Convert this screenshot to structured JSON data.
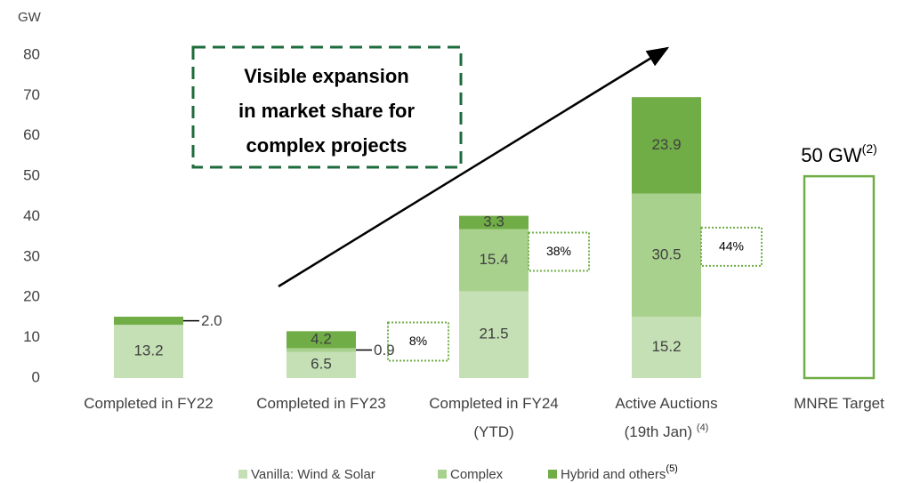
{
  "chart_data": {
    "type": "stacked_bar",
    "y_axis_label": "GW",
    "categories": [
      [
        "Completed in FY22"
      ],
      [
        "Completed in FY23"
      ],
      [
        "Completed in FY24",
        "(YTD)"
      ],
      [
        "Active Auctions",
        "(19th Jan)"
      ],
      [
        "MNRE Target"
      ]
    ],
    "category_notes": [
      null,
      null,
      null,
      "(4)",
      null
    ],
    "series": [
      {
        "name": "Vanilla: Wind & Solar",
        "color": "#c5e0b4",
        "values": [
          13.2,
          6.5,
          21.5,
          15.2,
          null
        ],
        "value_labels": [
          "13.2",
          "6.5",
          "21.5",
          "15.2",
          null
        ]
      },
      {
        "name": "Complex",
        "color": "#a9d18e",
        "values": [
          null,
          0.9,
          15.4,
          30.5,
          null
        ],
        "value_labels": [
          null,
          "0.9",
          "15.4",
          "30.5",
          null
        ]
      },
      {
        "name": "Hybrid and others",
        "note": "(5)",
        "color": "#70ad47",
        "values": [
          2.0,
          4.2,
          3.3,
          23.9,
          null
        ],
        "value_labels": [
          "2.0",
          "4.2",
          "3.3",
          "23.9",
          null
        ]
      }
    ],
    "target": {
      "category": 4,
      "value": 50,
      "label": "50 GW",
      "note": "(2)",
      "color": "#70ad47"
    },
    "shares": [
      null,
      8,
      38,
      44,
      null
    ],
    "share_labels": [
      null,
      "8%",
      "38%",
      "44%",
      null
    ],
    "callout": [
      "Visible expansion",
      "in market share for",
      "complex projects"
    ],
    "ylim": [
      0,
      80
    ],
    "yticks": [
      0,
      10,
      20,
      30,
      40,
      50,
      60,
      70,
      80
    ]
  }
}
